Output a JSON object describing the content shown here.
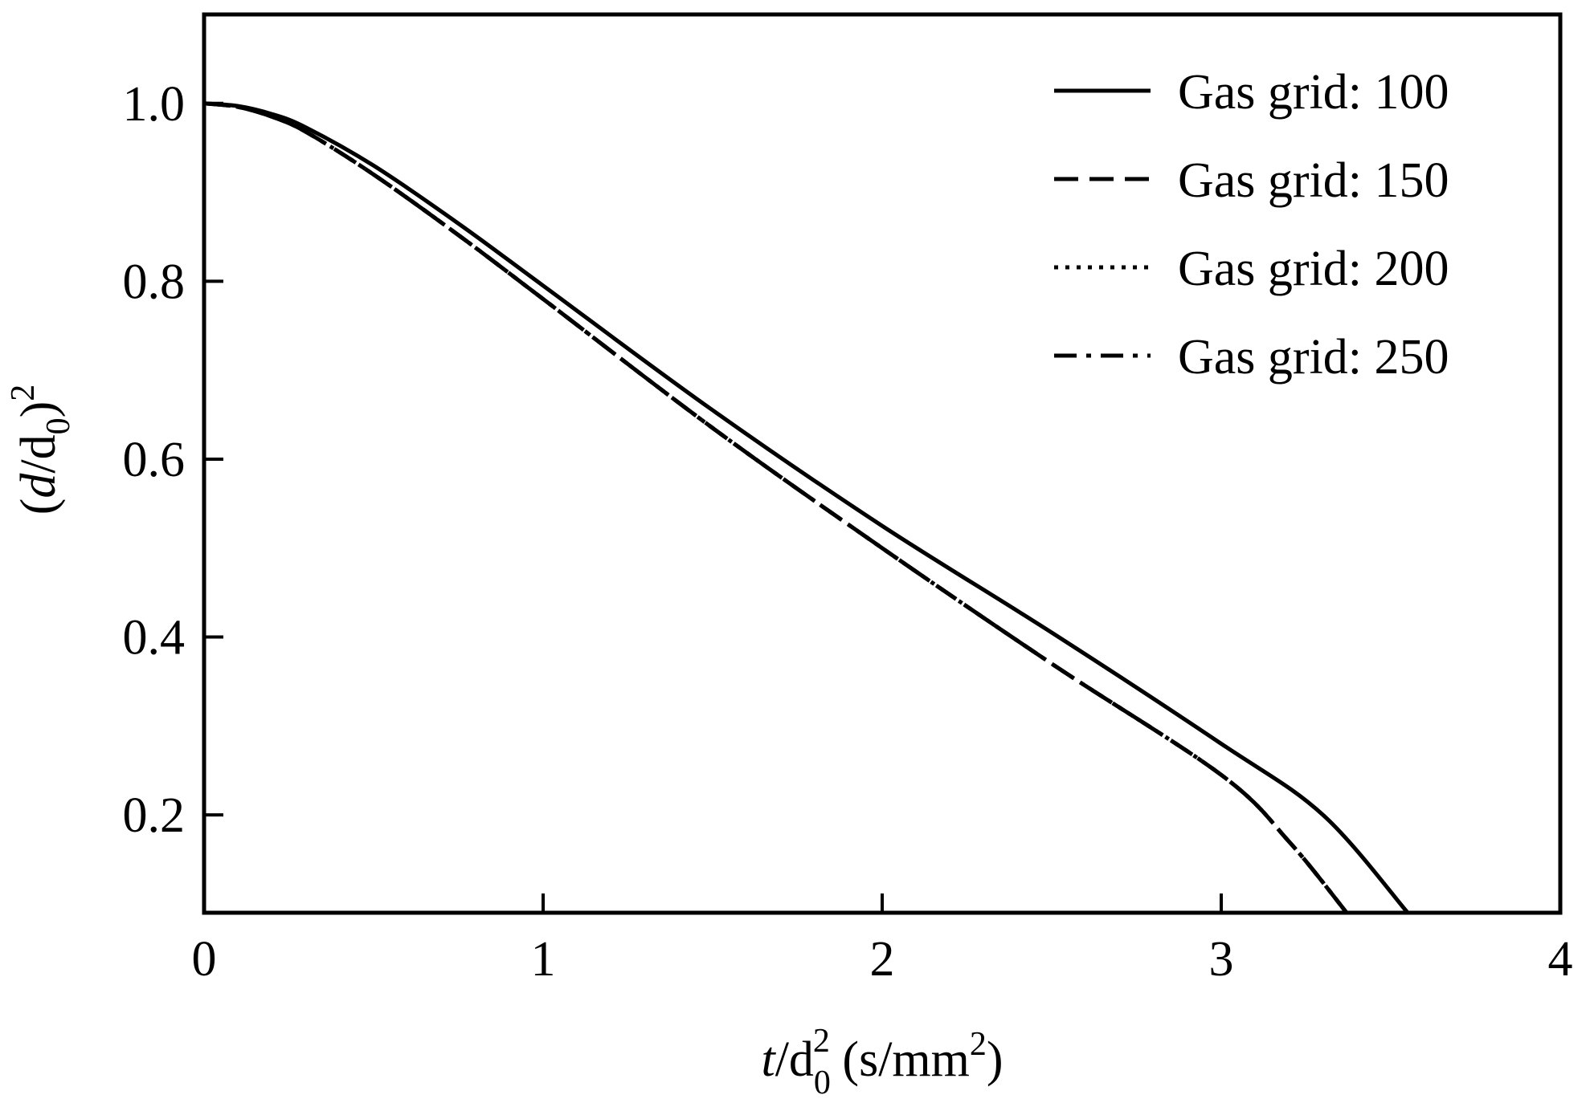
{
  "chart_data": {
    "type": "line",
    "xlabel": {
      "main": "t",
      "sep": "/d",
      "sub": "0",
      "sup": "2",
      "units_pre": " (s/mm",
      "units_sup": "2",
      "units_post": ")"
    },
    "ylabel": {
      "open": "(",
      "main": "d",
      "sep": "/d",
      "sub": "0",
      "close": ")",
      "sup": "2"
    },
    "xlim": [
      0,
      4
    ],
    "ylim": [
      0.09,
      1.1
    ],
    "xticks": [
      0,
      1,
      2,
      3,
      4
    ],
    "xtick_labels": [
      "0",
      "1",
      "2",
      "3",
      "4"
    ],
    "yticks": [
      0.2,
      0.4,
      0.6,
      0.8,
      1.0
    ],
    "ytick_labels": [
      "0.2",
      "0.4",
      "0.6",
      "0.8",
      "1.0"
    ],
    "grid": false,
    "legend_position": "top-right",
    "line_color": "#000000",
    "series": [
      {
        "name": "Gas grid: 100",
        "style": "solid",
        "x": [
          0,
          0.1,
          0.2,
          0.3,
          0.5,
          0.75,
          1.0,
          1.5,
          2.0,
          2.5,
          3.0,
          3.3,
          3.55
        ],
        "y": [
          1.0,
          0.997,
          0.988,
          0.973,
          0.93,
          0.865,
          0.795,
          0.655,
          0.525,
          0.405,
          0.28,
          0.2,
          0.09
        ]
      },
      {
        "name": "Gas grid: 150",
        "style": "dashed",
        "x": [
          0,
          0.1,
          0.2,
          0.3,
          0.5,
          0.75,
          1.0,
          1.5,
          2.0,
          2.5,
          3.0,
          3.2,
          3.37
        ],
        "y": [
          1.0,
          0.996,
          0.985,
          0.968,
          0.92,
          0.852,
          0.78,
          0.635,
          0.5,
          0.37,
          0.245,
          0.17,
          0.09
        ]
      },
      {
        "name": "Gas grid: 200",
        "style": "dotted",
        "x": [
          0,
          0.1,
          0.2,
          0.3,
          0.5,
          0.75,
          1.0,
          1.5,
          2.0,
          2.5,
          3.0,
          3.2,
          3.37
        ],
        "y": [
          1.0,
          0.996,
          0.985,
          0.968,
          0.92,
          0.852,
          0.78,
          0.635,
          0.5,
          0.37,
          0.245,
          0.17,
          0.09
        ]
      },
      {
        "name": "Gas grid: 250",
        "style": "dashdot",
        "x": [
          0,
          0.1,
          0.2,
          0.3,
          0.5,
          0.75,
          1.0,
          1.5,
          2.0,
          2.5,
          3.0,
          3.2,
          3.37
        ],
        "y": [
          1.0,
          0.996,
          0.985,
          0.968,
          0.92,
          0.852,
          0.78,
          0.635,
          0.5,
          0.37,
          0.245,
          0.17,
          0.09
        ]
      }
    ]
  }
}
